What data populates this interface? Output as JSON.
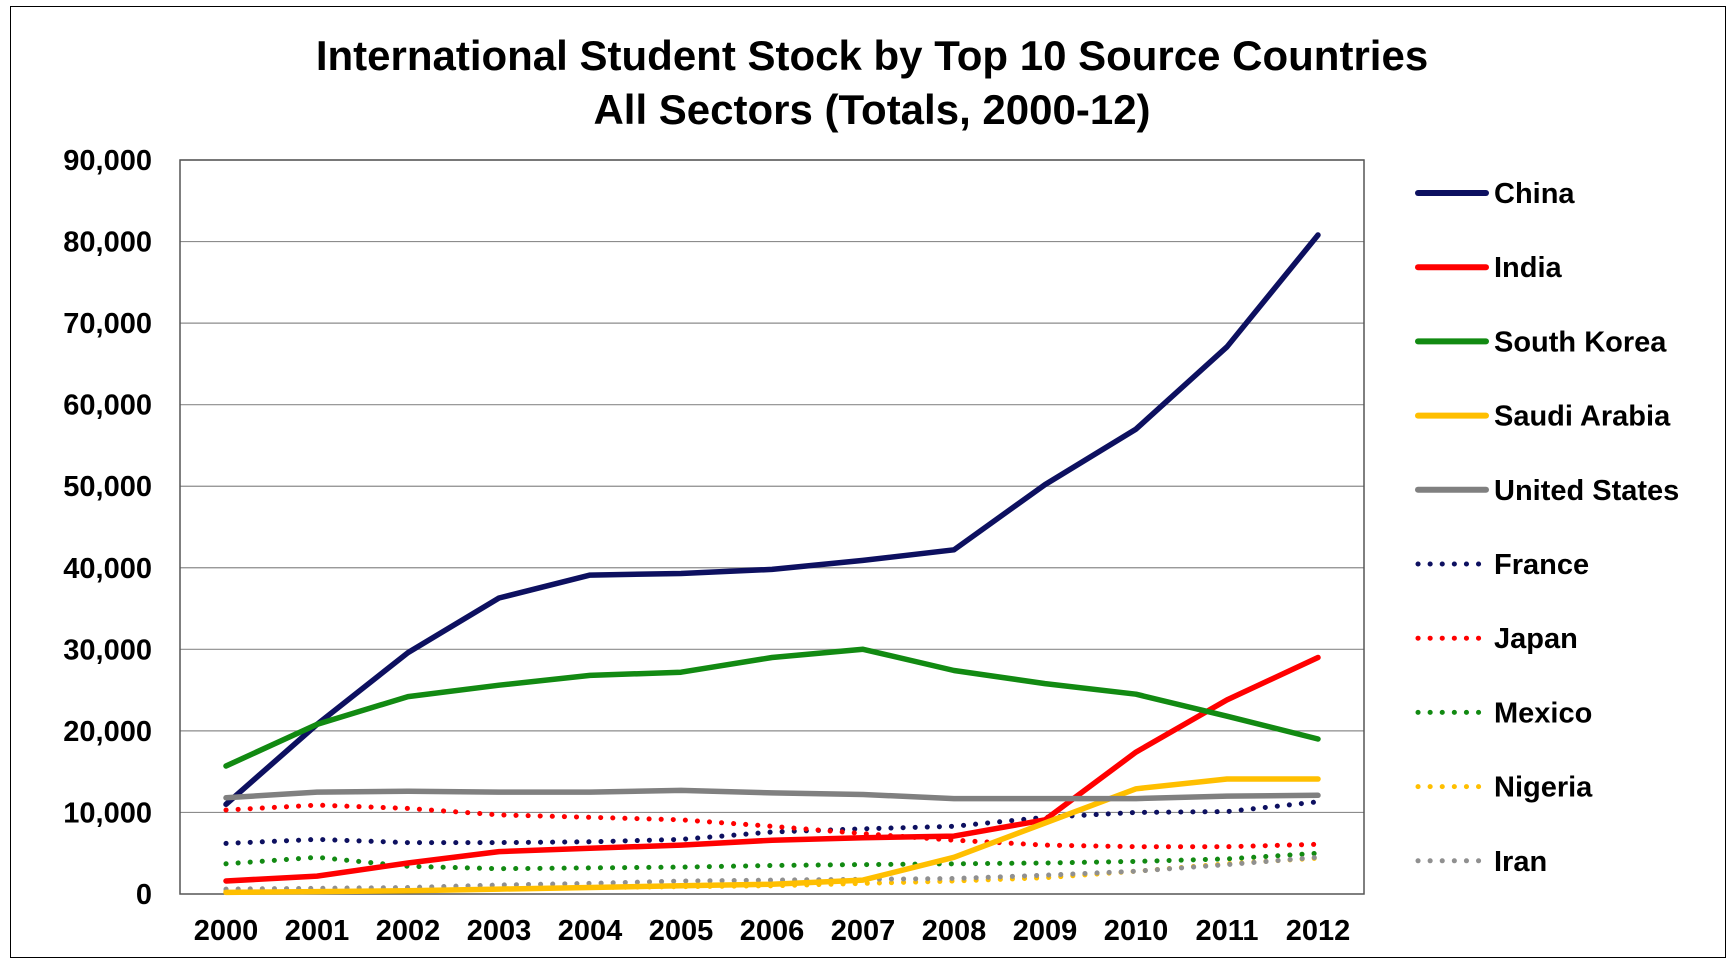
{
  "chart_data": {
    "type": "line",
    "title": "International Student Stock by Top 10 Source Countries",
    "subtitle": "All Sectors (Totals, 2000-12)",
    "xlabel": "",
    "ylabel": "",
    "x": [
      "2000",
      "2001",
      "2002",
      "2003",
      "2004",
      "2005",
      "2006",
      "2007",
      "2008",
      "2009",
      "2010",
      "2011",
      "2012"
    ],
    "ylim": [
      0,
      90000
    ],
    "y_ticks": [
      {
        "value": 0,
        "label": "0"
      },
      {
        "value": 10000,
        "label": "10,000"
      },
      {
        "value": 20000,
        "label": "20,000"
      },
      {
        "value": 30000,
        "label": "30,000"
      },
      {
        "value": 40000,
        "label": "40,000"
      },
      {
        "value": 50000,
        "label": "50,000"
      },
      {
        "value": 60000,
        "label": "60,000"
      },
      {
        "value": 70000,
        "label": "70,000"
      },
      {
        "value": 80000,
        "label": "80,000"
      },
      {
        "value": 90000,
        "label": "90,000"
      }
    ],
    "grid": true,
    "legend_position": "right",
    "series": [
      {
        "name": "China",
        "color": "#0d1060",
        "style": "solid",
        "values": [
          11000,
          20800,
          29600,
          36300,
          39100,
          39300,
          39800,
          40900,
          42200,
          50200,
          57000,
          67100,
          80800
        ]
      },
      {
        "name": "India",
        "color": "#ff0000",
        "style": "solid",
        "values": [
          1600,
          2200,
          3800,
          5200,
          5600,
          6000,
          6600,
          6900,
          7100,
          9100,
          17400,
          23800,
          29000
        ]
      },
      {
        "name": "South Korea",
        "color": "#128a12",
        "style": "solid",
        "values": [
          15700,
          20800,
          24200,
          25600,
          26800,
          27200,
          29000,
          30000,
          27400,
          25800,
          24500,
          21800,
          19000
        ]
      },
      {
        "name": "Saudi Arabia",
        "color": "#ffbf00",
        "style": "solid",
        "values": [
          200,
          300,
          400,
          600,
          800,
          1000,
          1200,
          1700,
          4500,
          8700,
          12900,
          14100,
          14100
        ]
      },
      {
        "name": "United States",
        "color": "#808080",
        "style": "solid",
        "values": [
          11800,
          12500,
          12600,
          12500,
          12500,
          12700,
          12400,
          12200,
          11700,
          11700,
          11700,
          12000,
          12100
        ]
      },
      {
        "name": "France",
        "color": "#0d1060",
        "style": "dotted",
        "values": [
          6200,
          6700,
          6300,
          6300,
          6400,
          6700,
          7600,
          8000,
          8300,
          9400,
          10000,
          10100,
          11300
        ]
      },
      {
        "name": "Japan",
        "color": "#ff0000",
        "style": "dotted",
        "values": [
          10300,
          10900,
          10500,
          9700,
          9400,
          9100,
          8300,
          7400,
          6600,
          6000,
          5800,
          5800,
          6100
        ]
      },
      {
        "name": "Mexico",
        "color": "#128a12",
        "style": "dotted",
        "values": [
          3700,
          4500,
          3400,
          3100,
          3200,
          3300,
          3500,
          3600,
          3700,
          3800,
          4000,
          4300,
          5000
        ]
      },
      {
        "name": "Nigeria",
        "color": "#ffbf00",
        "style": "dotted",
        "values": [
          400,
          400,
          500,
          700,
          800,
          900,
          1000,
          1300,
          1600,
          2000,
          2800,
          3700,
          4400
        ]
      },
      {
        "name": "Iran",
        "color": "#909090",
        "style": "dotted",
        "values": [
          600,
          700,
          800,
          1100,
          1300,
          1600,
          1700,
          1800,
          1900,
          2300,
          2800,
          3600,
          4500
        ]
      }
    ]
  }
}
